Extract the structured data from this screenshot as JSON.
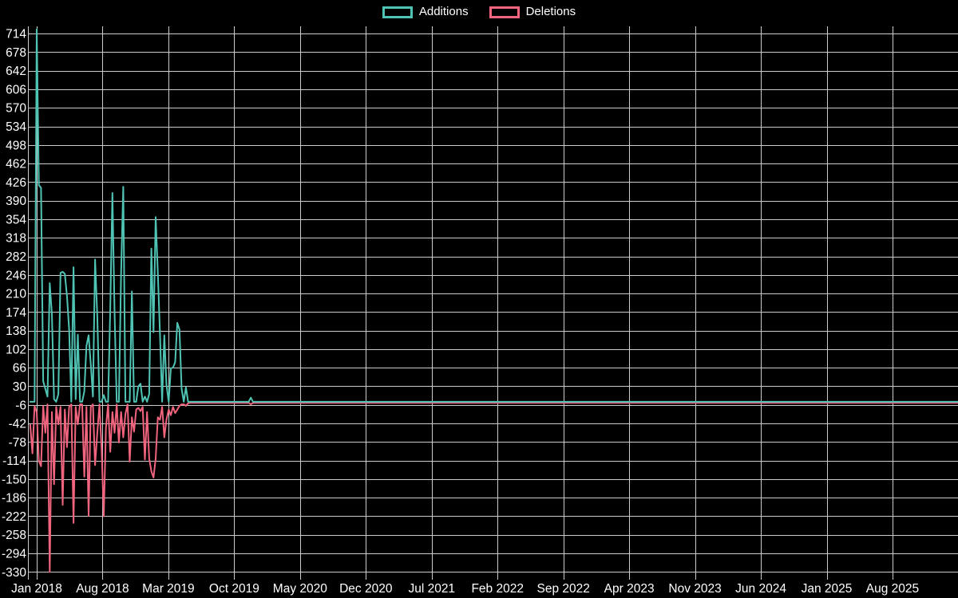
{
  "legend": {
    "items": [
      {
        "label": "Additions",
        "color": "#4fc4b4"
      },
      {
        "label": "Deletions",
        "color": "#f0647e"
      }
    ]
  },
  "colors": {
    "background": "#000000",
    "grid": "#ffffff",
    "axis_text": "#ffffff",
    "additions": "#4fc4b4",
    "deletions": "#f0647e"
  },
  "chart_data": {
    "type": "line",
    "title": "",
    "xlabel": "",
    "ylabel": "",
    "grid": true,
    "legend_position": "top-center",
    "x_unit": "weeks since Jan 2018 (one data point per week)",
    "x_tick_labels": [
      "Jan 2018",
      "Aug 2018",
      "Mar 2019",
      "Oct 2019",
      "May 2020",
      "Dec 2020",
      "Jul 2021",
      "Feb 2022",
      "Sep 2022",
      "Apr 2023",
      "Nov 2023",
      "Jun 2024",
      "Jan 2025",
      "Aug 2025"
    ],
    "x_tick_interval_weeks": 30.4375,
    "x_domain_weeks": [
      -4,
      426
    ],
    "y_tick_labels": [
      714,
      678,
      642,
      606,
      570,
      534,
      498,
      462,
      426,
      390,
      354,
      318,
      282,
      246,
      210,
      174,
      138,
      102,
      66,
      30,
      -6,
      -42,
      -78,
      -114,
      -150,
      -186,
      -222,
      -258,
      -294,
      -330
    ],
    "y_domain": [
      -345,
      725
    ],
    "series": [
      {
        "name": "Additions",
        "color": "#4fc4b4",
        "start_week": -3,
        "values": [
          0,
          0,
          0,
          722,
          420,
          415,
          40,
          25,
          10,
          230,
          170,
          5,
          0,
          15,
          250,
          252,
          248,
          205,
          140,
          0,
          261,
          5,
          130,
          0,
          0,
          20,
          108,
          129,
          73,
          10,
          276,
          165,
          0,
          0,
          13,
          0,
          0,
          180,
          405,
          173,
          0,
          0,
          250,
          417,
          0,
          0,
          0,
          214,
          0,
          0,
          30,
          35,
          0,
          10,
          0,
          15,
          297,
          135,
          358,
          250,
          131,
          0,
          129,
          33,
          0,
          65,
          66,
          77,
          153,
          140,
          25,
          0,
          28,
          0,
          0,
          0,
          0,
          0,
          0,
          0,
          0,
          0,
          0,
          0,
          0,
          0,
          0,
          0,
          0,
          0,
          0,
          0,
          0,
          0,
          0,
          0,
          0,
          0,
          0,
          0,
          0,
          0,
          8,
          0
        ]
      },
      {
        "name": "Deletions",
        "color": "#f0647e",
        "start_week": -3,
        "values": [
          -45,
          -100,
          -8,
          -20,
          -115,
          -125,
          -8,
          -60,
          -5,
          -330,
          -20,
          -160,
          -10,
          -44,
          -10,
          -200,
          -15,
          -88,
          -10,
          -5,
          -235,
          -10,
          -44,
          -5,
          -5,
          -145,
          -10,
          -221,
          -10,
          -5,
          -123,
          -60,
          -5,
          -93,
          -222,
          -51,
          -5,
          -97,
          -20,
          -60,
          -5,
          -79,
          -20,
          -69,
          -24,
          -5,
          -116,
          -30,
          -58,
          -15,
          -12,
          -18,
          -10,
          -112,
          -20,
          -110,
          -135,
          -147,
          -110,
          -30,
          -35,
          -10,
          -69,
          -35,
          -15,
          -26,
          -10,
          -22,
          -15,
          -8,
          -5,
          -5,
          -8,
          -3,
          -2,
          -2,
          -2,
          -2,
          -2,
          -2,
          -2,
          -2,
          -2,
          -2,
          -2,
          -2,
          -2,
          -2,
          -2,
          -2,
          -2,
          -2,
          -2,
          -2,
          -2,
          -2,
          -2,
          -2,
          -2,
          -2,
          -2,
          -2,
          -5,
          -2
        ]
      }
    ],
    "flat_tail": {
      "additions": 0,
      "deletions": -2,
      "to_week": 426
    }
  }
}
